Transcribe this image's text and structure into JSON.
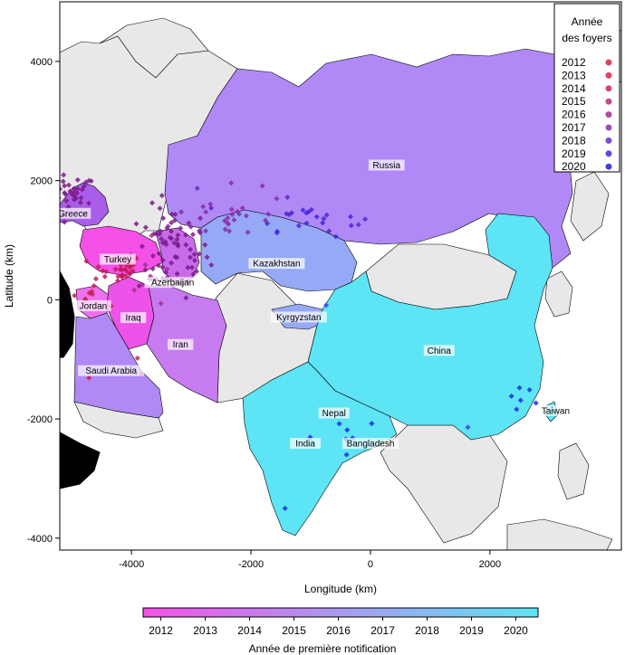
{
  "chart_data": {
    "type": "scatter",
    "xlabel": "Longitude (km)",
    "ylabel": "Latitude (km)",
    "xlim": [
      -5200,
      4200
    ],
    "ylim": [
      -4200,
      5000
    ],
    "xticks": [
      -4000,
      -2000,
      0,
      2000
    ],
    "yticks": [
      -4000,
      -2000,
      0,
      2000,
      4000
    ],
    "grid": false,
    "colors": {
      "sea": "#ffffff",
      "land": "#e8e8e8",
      "outer": "#000000",
      "pink": "#f550e8",
      "purple": "#b089f7",
      "cyan": "#5de4f5"
    },
    "countries": [
      {
        "name": "Russia",
        "x": 270,
        "y": 2230,
        "color": "#b089f7"
      },
      {
        "name": "Greece",
        "x": -4980,
        "y": 1420,
        "color": "#a95ee9"
      },
      {
        "name": "Turkey",
        "x": -4230,
        "y": 650,
        "color": "#f550e8"
      },
      {
        "name": "Azerbaijan",
        "x": -3310,
        "y": 260,
        "color": "#c86cec"
      },
      {
        "name": "Kazakhstan",
        "x": -1570,
        "y": 580,
        "color": "#96a9f7"
      },
      {
        "name": "Jordan",
        "x": -4640,
        "y": -130,
        "color": "#f070ef"
      },
      {
        "name": "Iraq",
        "x": -3970,
        "y": -330,
        "color": "#ee52e8"
      },
      {
        "name": "Iran",
        "x": -3180,
        "y": -780,
        "color": "#c77bf0"
      },
      {
        "name": "Kyrgyzstan",
        "x": -1200,
        "y": -320,
        "color": "#96a9f7"
      },
      {
        "name": "China",
        "x": 1150,
        "y": -880,
        "color": "#5de4f5"
      },
      {
        "name": "Saudi Arabia",
        "x": -4340,
        "y": -1220,
        "color": "#b089f7"
      },
      {
        "name": "Nepal",
        "x": -610,
        "y": -1930,
        "color": "#5de4f5"
      },
      {
        "name": "Taiwan",
        "x": 3100,
        "y": -1890,
        "color": "#5de4f5"
      },
      {
        "name": "India",
        "x": -1090,
        "y": -2440,
        "color": "#5de4f5"
      },
      {
        "name": "Bangladesh",
        "x": 0,
        "y": -2440,
        "color": "#5de4f5"
      }
    ],
    "legend_points": {
      "title": [
        "Année",
        "des foyers"
      ],
      "placement": "top-right",
      "entries": [
        {
          "year": "2012",
          "color": "#e93f55"
        },
        {
          "year": "2013",
          "color": "#e44262"
        },
        {
          "year": "2014",
          "color": "#da4472"
        },
        {
          "year": "2015",
          "color": "#c8478a"
        },
        {
          "year": "2016",
          "color": "#b24ba4"
        },
        {
          "year": "2017",
          "color": "#9a4ebb"
        },
        {
          "year": "2018",
          "color": "#7d4dcf"
        },
        {
          "year": "2019",
          "color": "#5f47de"
        },
        {
          "year": "2020",
          "color": "#3b3fe8"
        }
      ]
    },
    "colorbar": {
      "title": "Année de première notification",
      "placement": "bottom",
      "range": [
        2011.6,
        2020.5
      ],
      "ticks": [
        "2012",
        "2013",
        "2014",
        "2015",
        "2016",
        "2017",
        "2018",
        "2019",
        "2020"
      ],
      "color_start": "#f550e8",
      "color_end": "#5de4f5"
    },
    "outbreak_clusters": [
      {
        "x": -5050,
        "y": 1750,
        "n": 45,
        "sx": 230,
        "sy": 170,
        "color": "#7a1a8a"
      },
      {
        "x": -3300,
        "y": 800,
        "n": 70,
        "sx": 300,
        "sy": 380,
        "color": "#7a1a8a"
      },
      {
        "x": -4250,
        "y": 520,
        "n": 30,
        "sx": 220,
        "sy": 120,
        "color": "#c4185a"
      },
      {
        "x": -2300,
        "y": 1400,
        "n": 25,
        "sx": 500,
        "sy": 200,
        "color": "#8a2aa8"
      },
      {
        "x": -1100,
        "y": 1400,
        "n": 20,
        "sx": 450,
        "sy": 120,
        "color": "#4626d8"
      },
      {
        "x": -4750,
        "y": 50,
        "n": 8,
        "sx": 150,
        "sy": 80,
        "color": "#c8204a"
      },
      {
        "x": -3650,
        "y": 400,
        "n": 10,
        "sx": 200,
        "sy": 300,
        "color": "#a03090"
      },
      {
        "x": 2500,
        "y": -1650,
        "n": 6,
        "sx": 150,
        "sy": 200,
        "color": "#2228e0"
      },
      {
        "x": -500,
        "y": -2200,
        "n": 6,
        "sx": 250,
        "sy": 150,
        "color": "#2228e0"
      }
    ],
    "outbreak_points": [
      {
        "x": -2900,
        "y": 1870,
        "color": "#6a2ab8"
      },
      {
        "x": -2330,
        "y": 1960,
        "color": "#8a2aa8"
      },
      {
        "x": -1810,
        "y": 1910,
        "color": "#8a2aa8"
      },
      {
        "x": -1390,
        "y": 1720,
        "color": "#5a2ac8"
      },
      {
        "x": -800,
        "y": 1290,
        "color": "#3a2ad8"
      },
      {
        "x": -200,
        "y": 1260,
        "color": "#5a2ac8"
      },
      {
        "x": -580,
        "y": 1060,
        "color": "#3a2ad8"
      },
      {
        "x": -740,
        "y": -90,
        "color": "#3b3fe8"
      },
      {
        "x": -3900,
        "y": -980,
        "color": "#c8204a"
      },
      {
        "x": -3830,
        "y": -1240,
        "color": "#c8204a"
      },
      {
        "x": -4710,
        "y": -1310,
        "color": "#c8204a"
      },
      {
        "x": 1630,
        "y": -2140,
        "color": "#3b3fe8"
      },
      {
        "x": -400,
        "y": -2600,
        "color": "#2228e0"
      },
      {
        "x": -1430,
        "y": -3500,
        "color": "#2228e0"
      }
    ]
  }
}
